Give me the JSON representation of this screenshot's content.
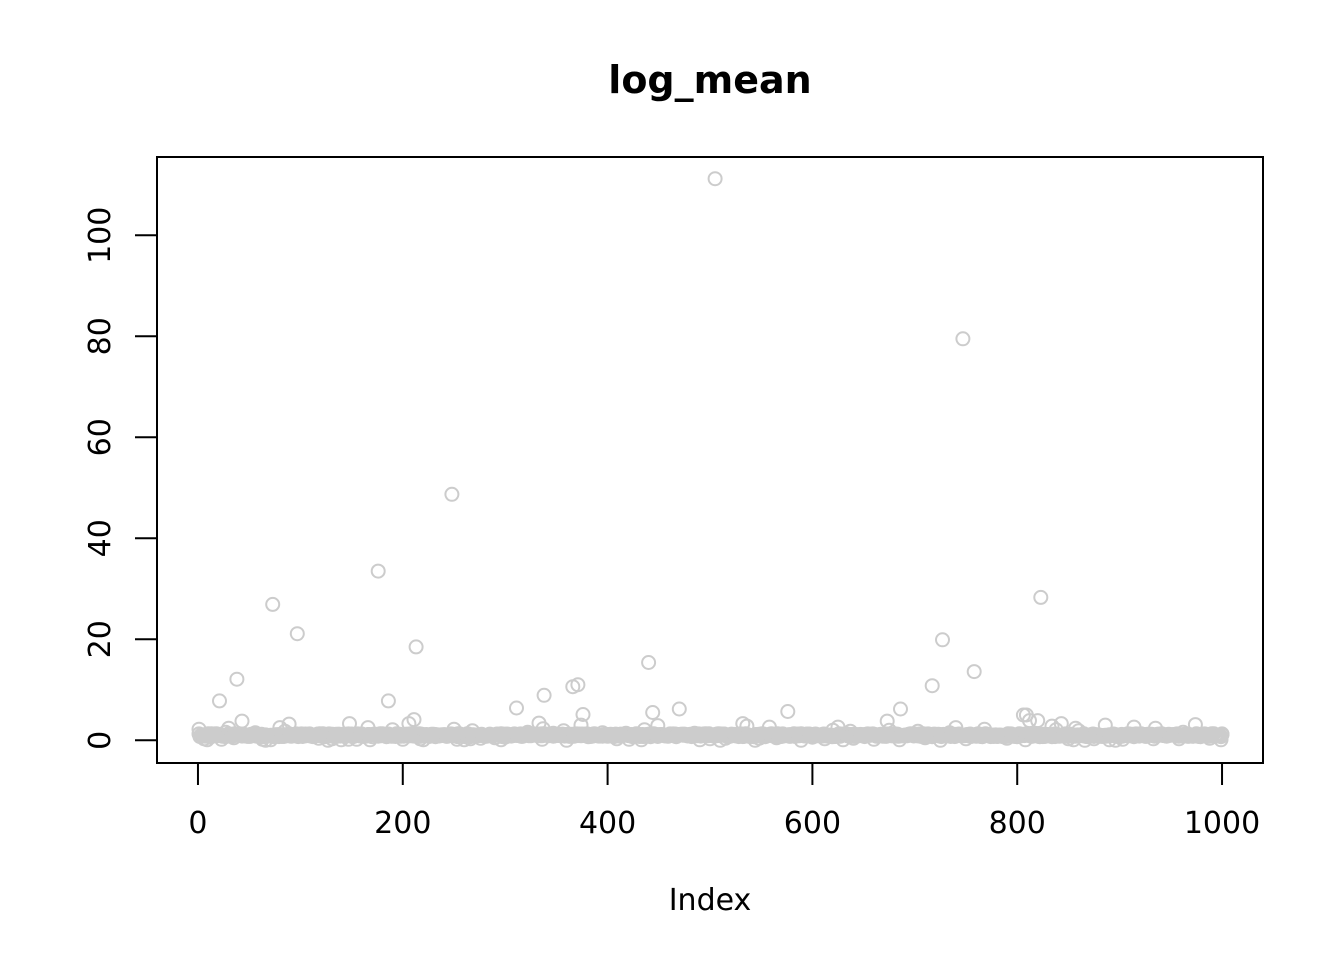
{
  "chart_data": {
    "type": "scatter",
    "title": "log_mean",
    "xlabel": "Index",
    "ylabel": "",
    "xlim": [
      -40,
      1040
    ],
    "ylim": [
      -4.5,
      115.5
    ],
    "xticks": [
      0,
      200,
      400,
      600,
      800,
      1000
    ],
    "yticks": [
      0,
      20,
      40,
      60,
      80,
      100
    ],
    "grid": false,
    "legend": "none",
    "point_color": "#cccccc",
    "marker": "open-circle",
    "n_points": 1000,
    "baseline_value": 1.0,
    "series": [
      {
        "points": [
          [
            1,
            2.2
          ],
          [
            3,
            0.8
          ],
          [
            6,
            0.3
          ],
          [
            9,
            0.1
          ],
          [
            12,
            0.6
          ],
          [
            18,
            1.3
          ],
          [
            21,
            7.8
          ],
          [
            23,
            0.2
          ],
          [
            27,
            1.6
          ],
          [
            30,
            2.4
          ],
          [
            35,
            0.5
          ],
          [
            38,
            12.1
          ],
          [
            43,
            3.8
          ],
          [
            50,
            0.9
          ],
          [
            56,
            1.5
          ],
          [
            63,
            0.2
          ],
          [
            66,
            0.0
          ],
          [
            71,
            0.1
          ],
          [
            73,
            26.9
          ],
          [
            80,
            2.5
          ],
          [
            85,
            1.8
          ],
          [
            89,
            3.2
          ],
          [
            97,
            21.1
          ],
          [
            110,
            0.9
          ],
          [
            118,
            0.4
          ],
          [
            127,
            0.0
          ],
          [
            131,
            0.3
          ],
          [
            140,
            0.1
          ],
          [
            147,
            0.2
          ],
          [
            148,
            3.3
          ],
          [
            155,
            0.2
          ],
          [
            166,
            2.5
          ],
          [
            168,
            0.1
          ],
          [
            176,
            33.5
          ],
          [
            186,
            7.8
          ],
          [
            190,
            2.1
          ],
          [
            200,
            0.2
          ],
          [
            206,
            3.3
          ],
          [
            211,
            4.1
          ],
          [
            213,
            18.5
          ],
          [
            217,
            0.3
          ],
          [
            220,
            0.1
          ],
          [
            232,
            0.7
          ],
          [
            248,
            48.7
          ],
          [
            250,
            2.2
          ],
          [
            253,
            0.2
          ],
          [
            260,
            0.1
          ],
          [
            266,
            0.3
          ],
          [
            268,
            1.9
          ],
          [
            276,
            0.4
          ],
          [
            290,
            0.5
          ],
          [
            296,
            0.1
          ],
          [
            300,
            0.6
          ],
          [
            311,
            6.4
          ],
          [
            322,
            1.6
          ],
          [
            333,
            3.4
          ],
          [
            336,
            0.2
          ],
          [
            337,
            2.3
          ],
          [
            338,
            8.9
          ],
          [
            347,
            1.4
          ],
          [
            357,
            1.9
          ],
          [
            360,
            0.0
          ],
          [
            366,
            10.6
          ],
          [
            371,
            11.0
          ],
          [
            374,
            3.0
          ],
          [
            376,
            5.1
          ],
          [
            395,
            1.5
          ],
          [
            403,
            1.2
          ],
          [
            409,
            0.3
          ],
          [
            418,
            1.4
          ],
          [
            421,
            0.2
          ],
          [
            433,
            0.1
          ],
          [
            436,
            2.1
          ],
          [
            440,
            15.4
          ],
          [
            444,
            5.5
          ],
          [
            449,
            2.9
          ],
          [
            470,
            6.2
          ],
          [
            485,
            1.4
          ],
          [
            490,
            0.1
          ],
          [
            500,
            0.3
          ],
          [
            505,
            111.2
          ],
          [
            510,
            0.0
          ],
          [
            515,
            0.4
          ],
          [
            532,
            3.3
          ],
          [
            536,
            2.8
          ],
          [
            544,
            0.0
          ],
          [
            548,
            0.4
          ],
          [
            558,
            2.6
          ],
          [
            565,
            0.5
          ],
          [
            576,
            5.7
          ],
          [
            582,
            1.3
          ],
          [
            589,
            0.0
          ],
          [
            600,
            0.6
          ],
          [
            612,
            0.3
          ],
          [
            620,
            2.0
          ],
          [
            625,
            2.6
          ],
          [
            630,
            0.1
          ],
          [
            637,
            1.8
          ],
          [
            640,
            0.4
          ],
          [
            660,
            0.2
          ],
          [
            673,
            3.8
          ],
          [
            675,
            2.0
          ],
          [
            685,
            0.1
          ],
          [
            686,
            6.2
          ],
          [
            703,
            1.8
          ],
          [
            710,
            0.5
          ],
          [
            717,
            10.8
          ],
          [
            725,
            0.0
          ],
          [
            727,
            19.9
          ],
          [
            734,
            1.5
          ],
          [
            740,
            2.5
          ],
          [
            747,
            79.5
          ],
          [
            750,
            0.3
          ],
          [
            758,
            13.6
          ],
          [
            765,
            0.9
          ],
          [
            768,
            2.2
          ],
          [
            790,
            0.4
          ],
          [
            797,
            0.9
          ],
          [
            804,
            1.2
          ],
          [
            806,
            5.0
          ],
          [
            808,
            0.1
          ],
          [
            809,
            5.0
          ],
          [
            812,
            3.9
          ],
          [
            820,
            3.9
          ],
          [
            823,
            28.3
          ],
          [
            834,
            2.8
          ],
          [
            838,
            2.1
          ],
          [
            843,
            3.3
          ],
          [
            850,
            0.3
          ],
          [
            855,
            0.1
          ],
          [
            857,
            2.4
          ],
          [
            860,
            1.9
          ],
          [
            866,
            0.0
          ],
          [
            875,
            0.3
          ],
          [
            886,
            3.0
          ],
          [
            890,
            0.1
          ],
          [
            896,
            0.0
          ],
          [
            903,
            0.2
          ],
          [
            914,
            2.6
          ],
          [
            933,
            0.3
          ],
          [
            935,
            2.4
          ],
          [
            958,
            0.3
          ],
          [
            962,
            1.6
          ],
          [
            974,
            3.1
          ],
          [
            988,
            0.4
          ],
          [
            990,
            1.3
          ],
          [
            999,
            0.1
          ],
          [
            1000,
            1.1
          ]
        ]
      }
    ]
  }
}
